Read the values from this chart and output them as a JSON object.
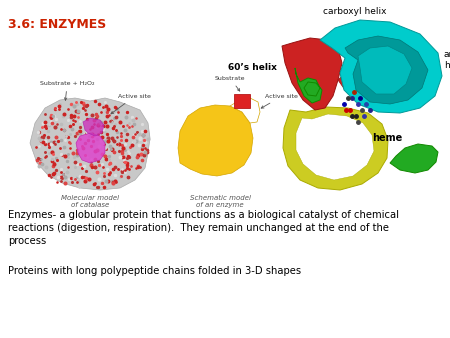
{
  "title": "3.6: ENZYMES",
  "title_color": "#cc2200",
  "title_fontsize": 9,
  "background_color": "#ffffff",
  "body_text_1": "Enzymes- a globular protein that functions as a biological catalyst of chemical\nreactions (digestion, respiration).  They remain unchanged at the end of the\nprocess",
  "body_text_2": "Proteins with long polypeptide chains folded in 3-D shapes",
  "body_text_fontsize": 7.2,
  "body_text_color": "#000000",
  "img1_label": "Molecular model\nof catalase",
  "img2_label": "Schematic model\nof an enzyme",
  "label_fontsize": 5.0
}
